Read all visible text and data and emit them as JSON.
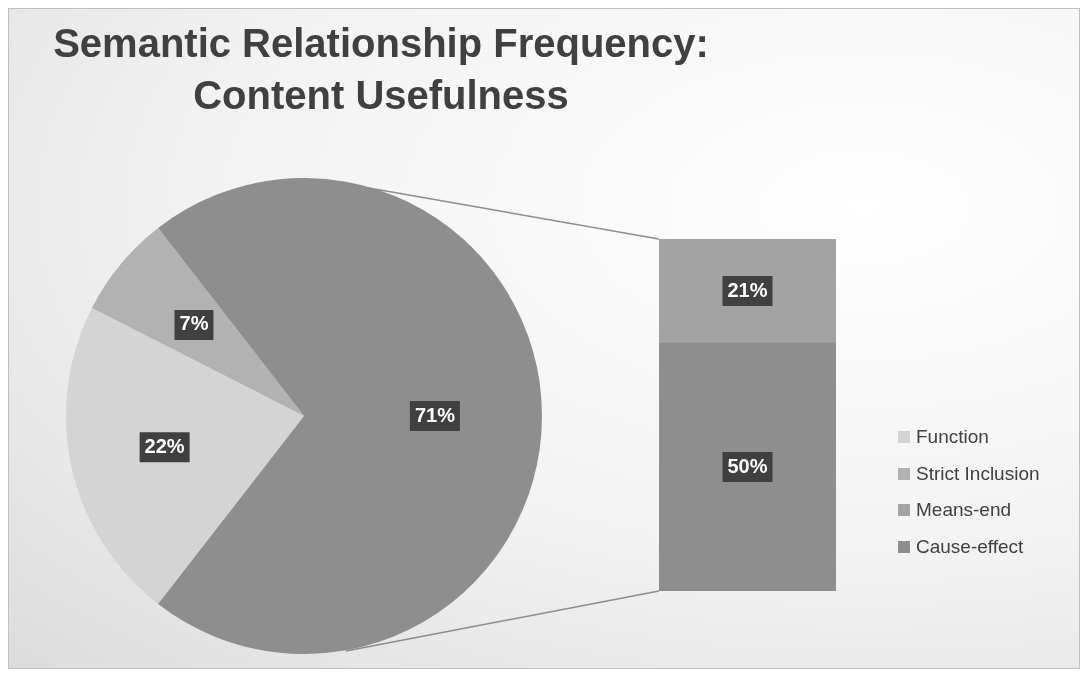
{
  "chart_data": [
    {
      "type": "pie",
      "title": "Semantic Relationship Frequency: Content Usefulness",
      "categories": [
        "Function",
        "Strict Inclusion",
        null
      ],
      "values": [
        22,
        7,
        71
      ],
      "colors": [
        "#d4d4d4",
        "#b2b2b2",
        "#8e8e8e"
      ],
      "value_labels": [
        "22%",
        "7%",
        "71%"
      ],
      "legend": "right"
    },
    {
      "type": "bar",
      "stacked": true,
      "categories": [
        null
      ],
      "series": [
        {
          "name": "Cause-effect",
          "color": "#8e8e8e",
          "values": [
            50
          ],
          "value_labels": [
            "50%"
          ]
        },
        {
          "name": "Means-end",
          "color": "#a3a3a3",
          "values": [
            21
          ],
          "value_labels": [
            "21%"
          ]
        }
      ],
      "legend": "right"
    }
  ]
}
